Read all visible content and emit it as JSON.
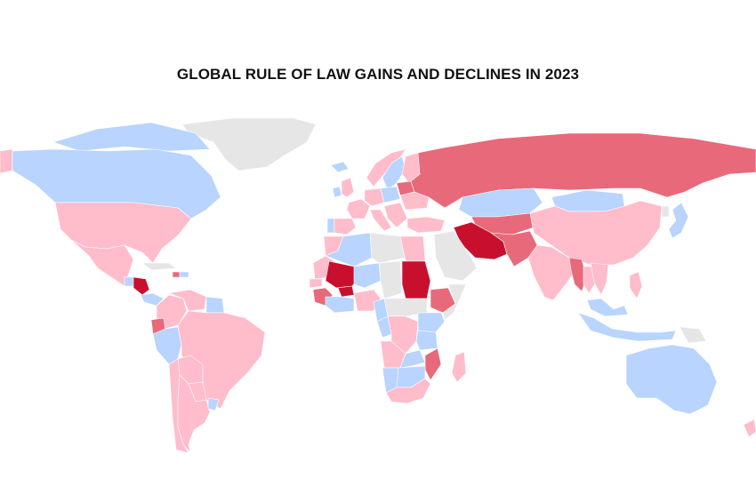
{
  "title": "GLOBAL RULE OF LAW GAINS AND DECLINES IN 2023",
  "legend_colors": {
    "strong_improvement": "#b8d4ff",
    "slight_decline": "#ffbccb",
    "moderate_decline": "#e8697a",
    "strong_decline": "#c8102e",
    "no_data": "#e6e6e6"
  },
  "regions": [
    {
      "id": "greenland",
      "status": "no_data"
    },
    {
      "id": "alaska",
      "status": "slight_decline"
    },
    {
      "id": "canada",
      "status": "strong_improvement"
    },
    {
      "id": "canadian-arctic-islands",
      "status": "strong_improvement"
    },
    {
      "id": "usa",
      "status": "slight_decline"
    },
    {
      "id": "mexico",
      "status": "slight_decline"
    },
    {
      "id": "guatemala",
      "status": "strong_improvement"
    },
    {
      "id": "nicaragua",
      "status": "strong_decline"
    },
    {
      "id": "costa-rica-panama",
      "status": "strong_improvement"
    },
    {
      "id": "cuba",
      "status": "no_data"
    },
    {
      "id": "haiti",
      "status": "moderate_decline"
    },
    {
      "id": "dominican-republic",
      "status": "strong_improvement"
    },
    {
      "id": "colombia",
      "status": "slight_decline"
    },
    {
      "id": "venezuela",
      "status": "slight_decline"
    },
    {
      "id": "guyana-suriname",
      "status": "strong_improvement"
    },
    {
      "id": "ecuador",
      "status": "moderate_decline"
    },
    {
      "id": "peru",
      "status": "strong_improvement"
    },
    {
      "id": "brazil",
      "status": "slight_decline"
    },
    {
      "id": "bolivia",
      "status": "slight_decline"
    },
    {
      "id": "paraguay",
      "status": "slight_decline"
    },
    {
      "id": "chile",
      "status": "slight_decline"
    },
    {
      "id": "argentina",
      "status": "slight_decline"
    },
    {
      "id": "uruguay",
      "status": "strong_improvement"
    },
    {
      "id": "iceland",
      "status": "strong_improvement"
    },
    {
      "id": "norway",
      "status": "slight_decline"
    },
    {
      "id": "sweden",
      "status": "strong_improvement"
    },
    {
      "id": "finland",
      "status": "slight_decline"
    },
    {
      "id": "uk",
      "status": "slight_decline"
    },
    {
      "id": "ireland",
      "status": "strong_improvement"
    },
    {
      "id": "france",
      "status": "slight_decline"
    },
    {
      "id": "spain",
      "status": "slight_decline"
    },
    {
      "id": "portugal",
      "status": "strong_improvement"
    },
    {
      "id": "germany",
      "status": "slight_decline"
    },
    {
      "id": "poland",
      "status": "strong_improvement"
    },
    {
      "id": "italy",
      "status": "slight_decline"
    },
    {
      "id": "balkans",
      "status": "slight_decline"
    },
    {
      "id": "ukraine",
      "status": "slight_decline"
    },
    {
      "id": "belarus",
      "status": "moderate_decline"
    },
    {
      "id": "turkey",
      "status": "slight_decline"
    },
    {
      "id": "russia",
      "status": "moderate_decline"
    },
    {
      "id": "kazakhstan",
      "status": "strong_improvement"
    },
    {
      "id": "central-asia",
      "status": "moderate_decline"
    },
    {
      "id": "mongolia",
      "status": "strong_improvement"
    },
    {
      "id": "china",
      "status": "slight_decline"
    },
    {
      "id": "north-korea",
      "status": "no_data"
    },
    {
      "id": "japan",
      "status": "strong_improvement"
    },
    {
      "id": "iran",
      "status": "strong_decline"
    },
    {
      "id": "afghanistan-pakistan",
      "status": "moderate_decline"
    },
    {
      "id": "india",
      "status": "slight_decline"
    },
    {
      "id": "myanmar",
      "status": "moderate_decline"
    },
    {
      "id": "thailand",
      "status": "slight_decline"
    },
    {
      "id": "vietnam-cambodia",
      "status": "slight_decline"
    },
    {
      "id": "philippines",
      "status": "slight_decline"
    },
    {
      "id": "malaysia",
      "status": "strong_improvement"
    },
    {
      "id": "indonesia",
      "status": "strong_improvement"
    },
    {
      "id": "papua",
      "status": "no_data"
    },
    {
      "id": "australia",
      "status": "strong_improvement"
    },
    {
      "id": "new-zealand",
      "status": "slight_decline"
    },
    {
      "id": "saudi-arabia",
      "status": "no_data"
    },
    {
      "id": "egypt",
      "status": "slight_decline"
    },
    {
      "id": "libya",
      "status": "no_data"
    },
    {
      "id": "algeria",
      "status": "strong_improvement"
    },
    {
      "id": "morocco",
      "status": "slight_decline"
    },
    {
      "id": "mauritania",
      "status": "slight_decline"
    },
    {
      "id": "mali",
      "status": "strong_decline"
    },
    {
      "id": "burkina-faso",
      "status": "strong_decline"
    },
    {
      "id": "niger",
      "status": "strong_improvement"
    },
    {
      "id": "chad",
      "status": "no_data"
    },
    {
      "id": "sudan",
      "status": "strong_decline"
    },
    {
      "id": "ethiopia",
      "status": "moderate_decline"
    },
    {
      "id": "somalia",
      "status": "no_data"
    },
    {
      "id": "senegal",
      "status": "slight_decline"
    },
    {
      "id": "guinea-region",
      "status": "moderate_decline"
    },
    {
      "id": "ivory-coast-ghana",
      "status": "strong_improvement"
    },
    {
      "id": "nigeria",
      "status": "slight_decline"
    },
    {
      "id": "cameroon",
      "status": "strong_improvement"
    },
    {
      "id": "car-south-sudan",
      "status": "no_data"
    },
    {
      "id": "gabon-congo",
      "status": "strong_improvement"
    },
    {
      "id": "drc",
      "status": "slight_decline"
    },
    {
      "id": "east-africa",
      "status": "strong_improvement"
    },
    {
      "id": "tanzania",
      "status": "strong_improvement"
    },
    {
      "id": "angola",
      "status": "slight_decline"
    },
    {
      "id": "zambia",
      "status": "strong_improvement"
    },
    {
      "id": "mozambique",
      "status": "moderate_decline"
    },
    {
      "id": "namibia",
      "status": "strong_improvement"
    },
    {
      "id": "botswana-zimbabwe",
      "status": "strong_improvement"
    },
    {
      "id": "south-africa",
      "status": "slight_decline"
    },
    {
      "id": "madagascar",
      "status": "slight_decline"
    }
  ]
}
